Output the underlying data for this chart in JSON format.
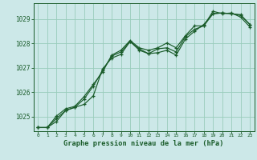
{
  "title": "Graphe pression niveau de la mer (hPa)",
  "background_color": "#cce8e8",
  "grid_color": "#99ccbb",
  "line_color": "#1a5c2a",
  "marker_color": "#1a5c2a",
  "xlim": [
    -0.5,
    23.5
  ],
  "ylim": [
    1024.4,
    1029.65
  ],
  "yticks": [
    1025,
    1026,
    1027,
    1028,
    1029
  ],
  "xticks": [
    0,
    1,
    2,
    3,
    4,
    5,
    6,
    7,
    8,
    9,
    10,
    11,
    12,
    13,
    14,
    15,
    16,
    17,
    18,
    19,
    20,
    21,
    22,
    23
  ],
  "series": [
    [
      1024.55,
      1024.55,
      1024.8,
      1025.25,
      1025.38,
      1025.5,
      1025.85,
      1026.95,
      1027.4,
      1027.55,
      1028.08,
      1027.72,
      1027.58,
      1027.62,
      1027.72,
      1027.52,
      1028.18,
      1028.5,
      1028.78,
      1029.22,
      1029.25,
      1029.22,
      1029.18,
      1028.78
    ],
    [
      1024.55,
      1024.55,
      1024.92,
      1025.25,
      1025.38,
      1025.72,
      1026.25,
      1026.88,
      1027.48,
      1027.65,
      1028.08,
      1027.78,
      1027.58,
      1027.78,
      1027.82,
      1027.65,
      1028.28,
      1028.58,
      1028.72,
      1029.22,
      1029.25,
      1029.22,
      1029.15,
      1028.78
    ],
    [
      1024.55,
      1024.55,
      1025.02,
      1025.32,
      1025.42,
      1025.82,
      1026.32,
      1026.82,
      1027.52,
      1027.72,
      1028.12,
      1027.82,
      1027.72,
      1027.82,
      1028.02,
      1027.82,
      1028.32,
      1028.72,
      1028.72,
      1029.32,
      1029.22,
      1029.25,
      1029.08,
      1028.68
    ]
  ]
}
